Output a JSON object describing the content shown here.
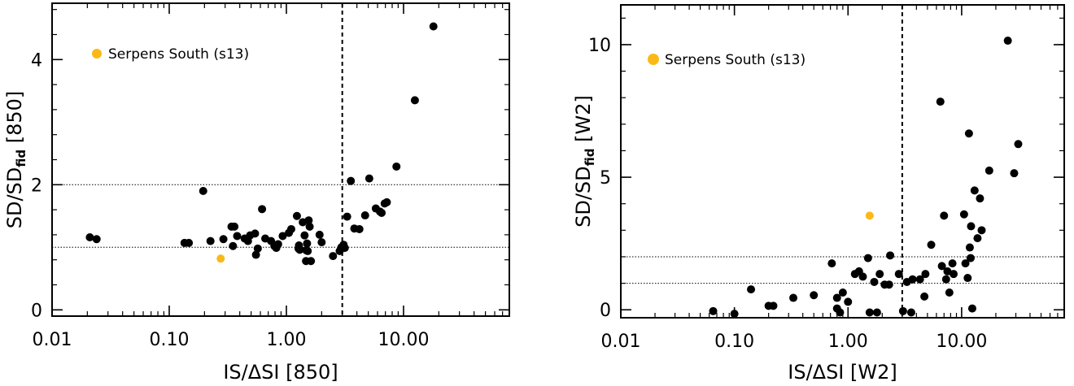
{
  "chart_data": [
    {
      "type": "scatter",
      "title": "",
      "xlabel": "IS/ΔSI [850]",
      "ylabel_main": "SD/SD",
      "ylabel_sub": "fid",
      "ylabel_tail": " [850]",
      "xscale": "log",
      "xlim": [
        0.01,
        80
      ],
      "ylim": [
        -0.1,
        4.9
      ],
      "xticks": [
        {
          "v": 0.01,
          "label": "0.01"
        },
        {
          "v": 0.1,
          "label": "0.10"
        },
        {
          "v": 1,
          "label": "1.00"
        },
        {
          "v": 10,
          "label": "10.00"
        }
      ],
      "yticks": [
        {
          "v": 0,
          "label": "0"
        },
        {
          "v": 2,
          "label": "2"
        },
        {
          "v": 4,
          "label": "4"
        }
      ],
      "hlines": [
        1.0,
        2.0
      ],
      "vline": 3.0,
      "legend_position": "top-left",
      "series": [
        {
          "name": "",
          "color": "#000000",
          "points": [
            [
              0.021,
              1.16
            ],
            [
              0.024,
              1.13
            ],
            [
              0.135,
              1.07
            ],
            [
              0.147,
              1.07
            ],
            [
              0.195,
              1.9
            ],
            [
              0.225,
              1.1
            ],
            [
              0.29,
              1.13
            ],
            [
              0.34,
              1.33
            ],
            [
              0.36,
              1.33
            ],
            [
              0.38,
              1.18
            ],
            [
              0.35,
              1.02
            ],
            [
              0.44,
              1.14
            ],
            [
              0.47,
              1.1
            ],
            [
              0.49,
              1.19
            ],
            [
              0.54,
              1.22
            ],
            [
              0.57,
              0.98
            ],
            [
              0.55,
              0.88
            ],
            [
              0.62,
              1.61
            ],
            [
              0.66,
              1.14
            ],
            [
              0.74,
              1.1
            ],
            [
              0.79,
              1.02
            ],
            [
              0.82,
              0.99
            ],
            [
              0.85,
              1.05
            ],
            [
              0.93,
              1.18
            ],
            [
              1.05,
              1.23
            ],
            [
              1.1,
              1.29
            ],
            [
              1.23,
              1.5
            ],
            [
              1.28,
              1.03
            ],
            [
              1.27,
              0.98
            ],
            [
              1.3,
              0.96
            ],
            [
              1.38,
              1.4
            ],
            [
              1.43,
              1.19
            ],
            [
              1.47,
              0.78
            ],
            [
              1.5,
              1.06
            ],
            [
              1.52,
              0.94
            ],
            [
              1.55,
              1.43
            ],
            [
              1.58,
              1.33
            ],
            [
              1.48,
              0.95
            ],
            [
              1.62,
              0.78
            ],
            [
              1.92,
              1.2
            ],
            [
              2.0,
              1.08
            ],
            [
              2.5,
              0.86
            ],
            [
              2.85,
              0.94
            ],
            [
              2.95,
              1.0
            ],
            [
              3.08,
              1.04
            ],
            [
              3.15,
              0.99
            ],
            [
              3.3,
              1.49
            ],
            [
              3.55,
              2.06
            ],
            [
              3.8,
              1.3
            ],
            [
              4.2,
              1.29
            ],
            [
              4.7,
              1.51
            ],
            [
              5.1,
              2.1
            ],
            [
              5.8,
              1.62
            ],
            [
              6.3,
              1.57
            ],
            [
              6.5,
              1.55
            ],
            [
              6.9,
              1.7
            ],
            [
              7.2,
              1.72
            ],
            [
              8.7,
              2.29
            ],
            [
              12.5,
              3.35
            ],
            [
              18.0,
              4.53
            ]
          ]
        },
        {
          "name": "Serpens South (s13)",
          "color": "#fbb917",
          "points": [
            [
              0.275,
              0.82
            ]
          ]
        }
      ]
    },
    {
      "type": "scatter",
      "title": "",
      "xlabel": "IS/ΔSI [W2]",
      "ylabel_main": "SD/SD",
      "ylabel_sub": "fid",
      "ylabel_tail": " [W2]",
      "xscale": "log",
      "xlim": [
        0.01,
        80
      ],
      "ylim": [
        -0.3,
        11.5
      ],
      "xticks": [
        {
          "v": 0.01,
          "label": "0.01"
        },
        {
          "v": 0.1,
          "label": "0.10"
        },
        {
          "v": 1,
          "label": "1.00"
        },
        {
          "v": 10,
          "label": "10.00"
        }
      ],
      "yticks": [
        {
          "v": 0,
          "label": "0"
        },
        {
          "v": 5,
          "label": "5"
        },
        {
          "v": 10,
          "label": "10"
        }
      ],
      "hlines": [
        1.0,
        2.0
      ],
      "vline": 3.0,
      "legend_position": "top-left",
      "series": [
        {
          "name": "",
          "color": "#000000",
          "points": [
            [
              0.065,
              -0.05
            ],
            [
              0.1,
              -0.15
            ],
            [
              0.14,
              0.77
            ],
            [
              0.2,
              0.15
            ],
            [
              0.22,
              0.15
            ],
            [
              0.33,
              0.45
            ],
            [
              0.5,
              0.55
            ],
            [
              0.72,
              1.75
            ],
            [
              0.8,
              0.45
            ],
            [
              0.8,
              0.05
            ],
            [
              0.9,
              0.65
            ],
            [
              0.85,
              -0.1
            ],
            [
              1.0,
              0.3
            ],
            [
              1.15,
              1.35
            ],
            [
              1.25,
              1.45
            ],
            [
              1.35,
              1.25
            ],
            [
              1.5,
              1.95
            ],
            [
              1.55,
              -0.1
            ],
            [
              1.7,
              1.05
            ],
            [
              1.9,
              1.35
            ],
            [
              1.8,
              -0.1
            ],
            [
              2.1,
              0.95
            ],
            [
              2.35,
              2.05
            ],
            [
              2.3,
              0.95
            ],
            [
              2.8,
              1.35
            ],
            [
              3.05,
              -0.05
            ],
            [
              3.3,
              1.05
            ],
            [
              3.7,
              1.15
            ],
            [
              3.6,
              -0.1
            ],
            [
              4.3,
              1.15
            ],
            [
              4.8,
              1.35
            ],
            [
              4.7,
              0.5
            ],
            [
              5.4,
              2.45
            ],
            [
              6.5,
              7.85
            ],
            [
              6.7,
              1.65
            ],
            [
              7.0,
              3.55
            ],
            [
              7.3,
              1.15
            ],
            [
              7.5,
              1.45
            ],
            [
              7.8,
              0.65
            ],
            [
              8.3,
              1.75
            ],
            [
              8.5,
              1.35
            ],
            [
              10.5,
              3.6
            ],
            [
              10.8,
              1.75
            ],
            [
              11.3,
              1.2
            ],
            [
              11.6,
              6.65
            ],
            [
              11.8,
              2.35
            ],
            [
              12.0,
              1.95
            ],
            [
              12.4,
              0.05
            ],
            [
              12.1,
              3.15
            ],
            [
              13.0,
              4.5
            ],
            [
              13.8,
              2.7
            ],
            [
              14.5,
              4.2
            ],
            [
              15.0,
              3.0
            ],
            [
              17.5,
              5.25
            ],
            [
              25.5,
              10.15
            ],
            [
              29.0,
              5.15
            ],
            [
              31.5,
              6.25
            ]
          ]
        },
        {
          "name": "Serpens South (s13)",
          "color": "#fbb917",
          "points": [
            [
              1.55,
              3.55
            ]
          ]
        }
      ]
    }
  ]
}
